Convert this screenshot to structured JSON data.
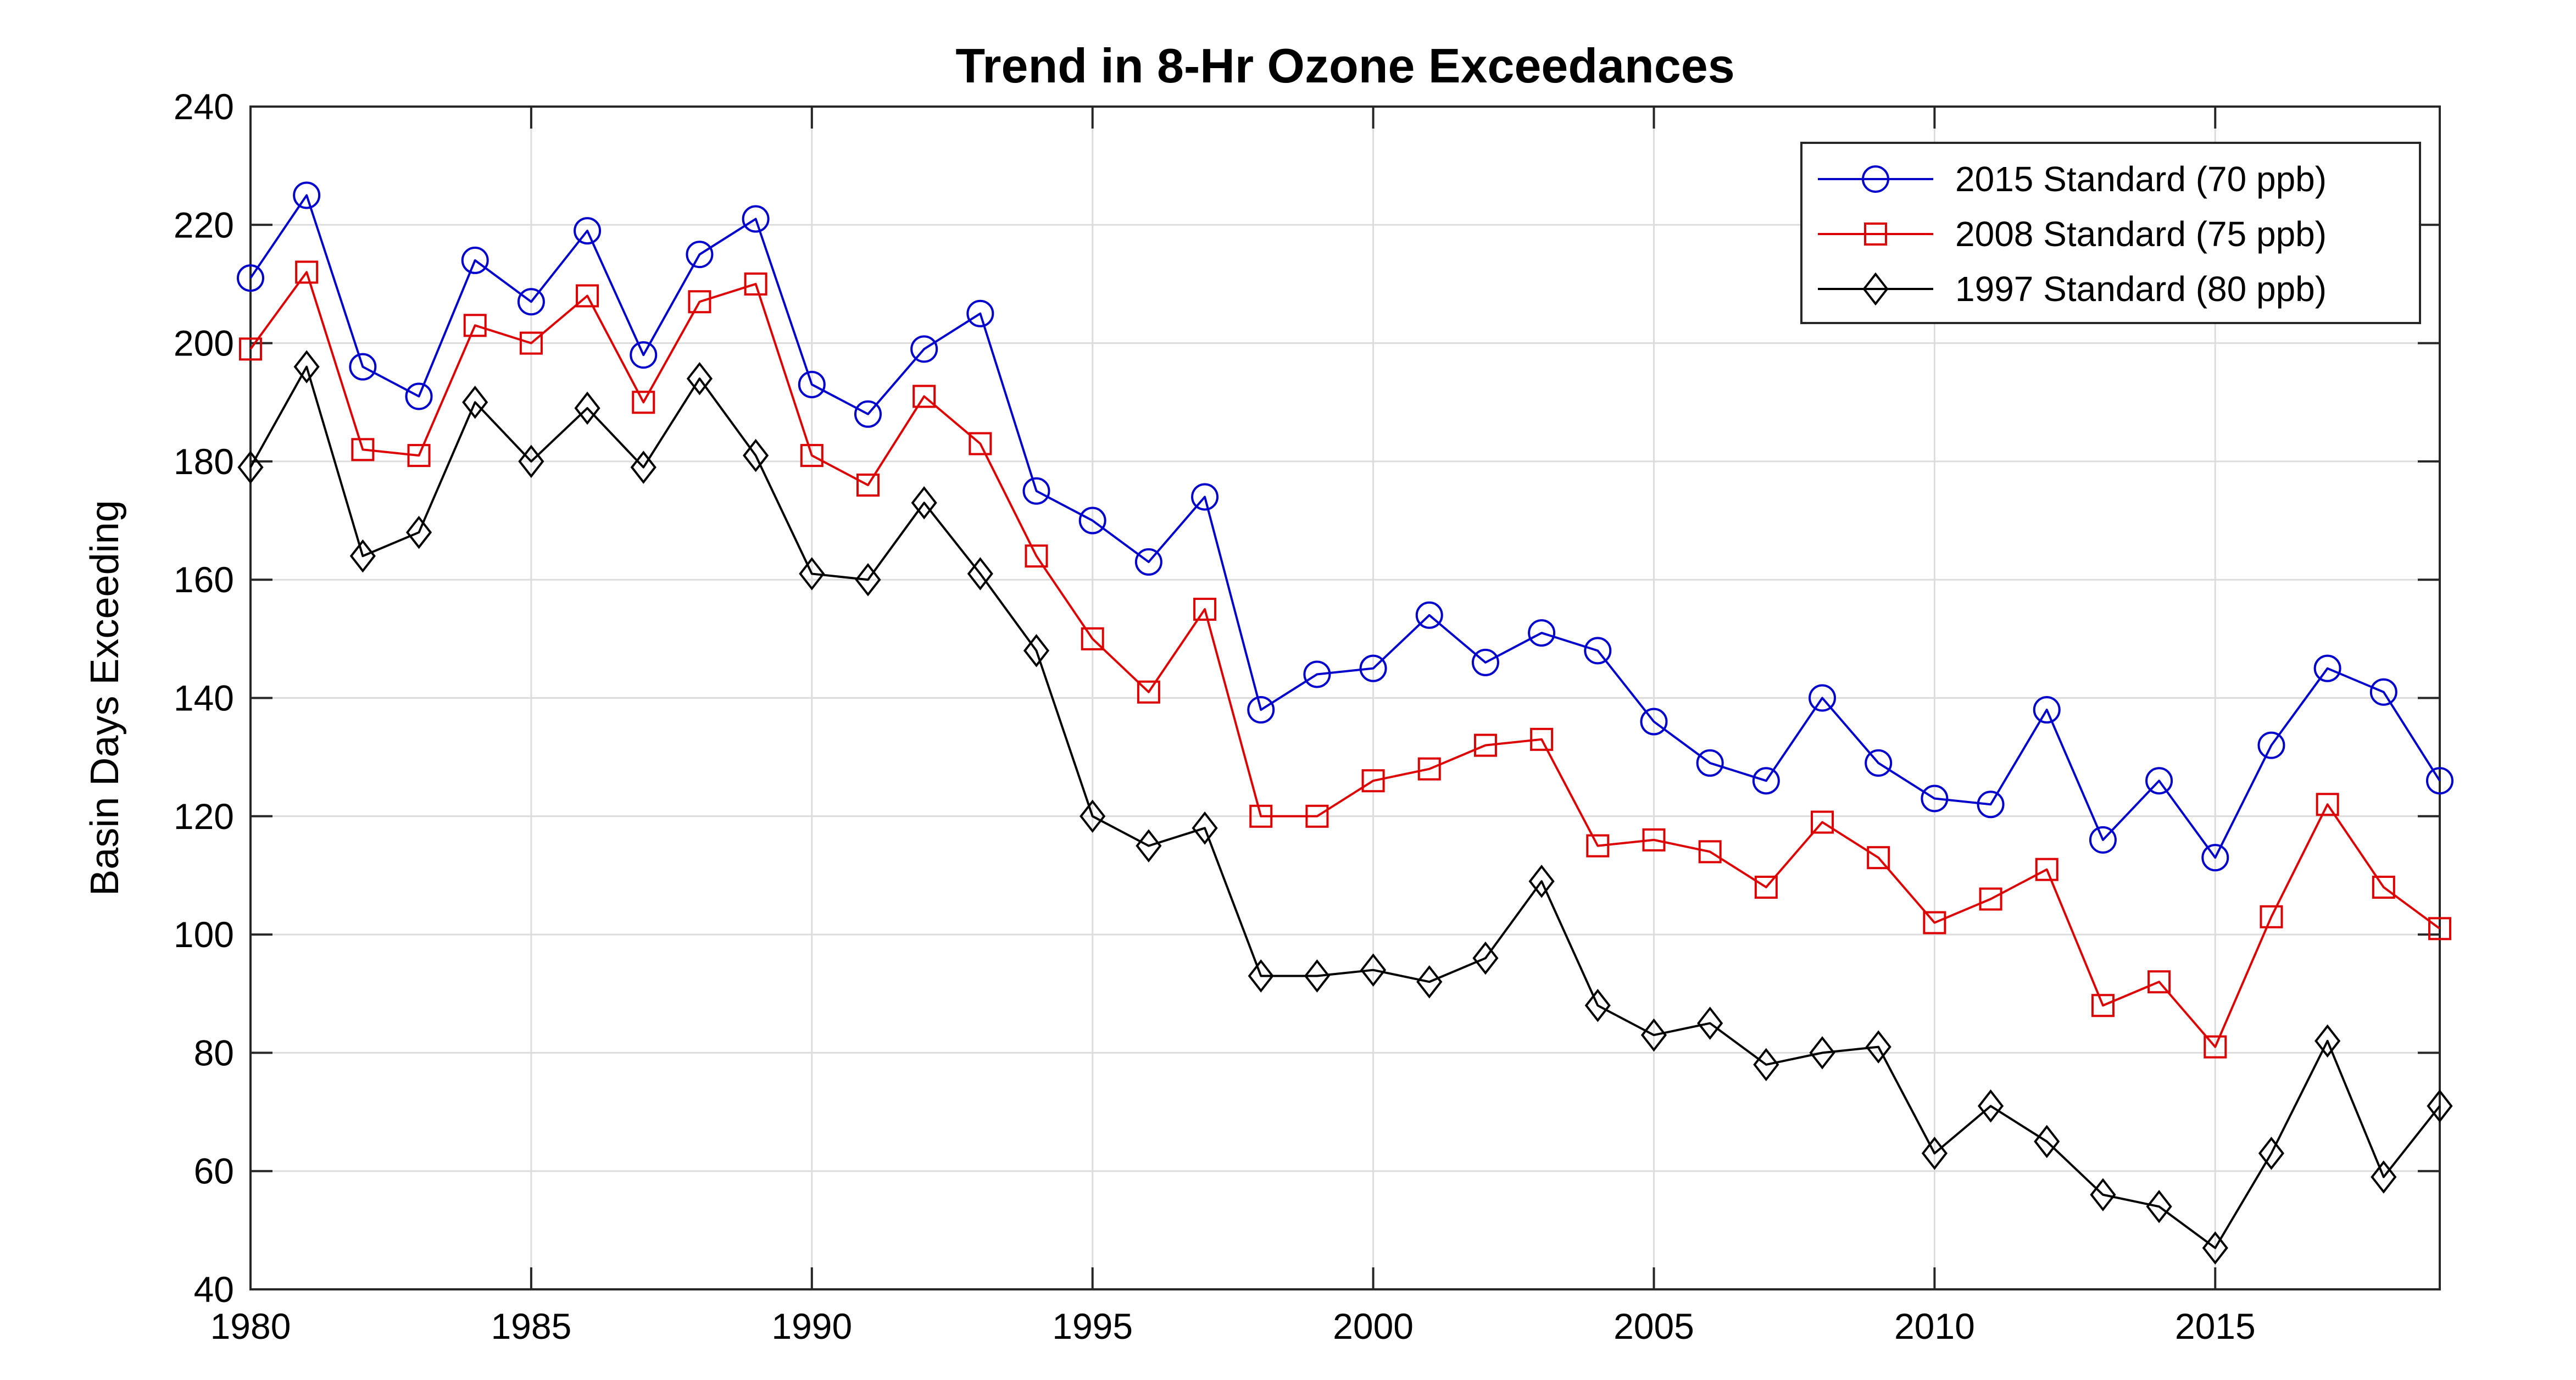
{
  "chart_data": {
    "type": "line",
    "title": "Trend in 8-Hr Ozone Exceedances",
    "xlabel": "",
    "ylabel": "Basin Days Exceeding",
    "xlim": [
      1980,
      2019
    ],
    "ylim": [
      40,
      240
    ],
    "x_ticks": [
      1980,
      1985,
      1990,
      1995,
      2000,
      2005,
      2010,
      2015
    ],
    "y_ticks": [
      40,
      60,
      80,
      100,
      120,
      140,
      160,
      180,
      200,
      220,
      240
    ],
    "grid": true,
    "legend_position": "top-right",
    "x": [
      1980,
      1981,
      1982,
      1983,
      1984,
      1985,
      1986,
      1987,
      1988,
      1989,
      1990,
      1991,
      1992,
      1993,
      1994,
      1995,
      1996,
      1997,
      1998,
      1999,
      2000,
      2001,
      2002,
      2003,
      2004,
      2005,
      2006,
      2007,
      2008,
      2009,
      2010,
      2011,
      2012,
      2013,
      2014,
      2015,
      2016,
      2017,
      2018,
      2019
    ],
    "series": [
      {
        "name": "2015 Standard (70 ppb)",
        "color": "#0000cc",
        "marker": "circle",
        "values": [
          211,
          225,
          196,
          191,
          214,
          207,
          219,
          198,
          215,
          221,
          193,
          188,
          199,
          205,
          175,
          170,
          163,
          174,
          138,
          144,
          145,
          154,
          146,
          151,
          148,
          136,
          129,
          126,
          140,
          129,
          123,
          122,
          138,
          116,
          126,
          113,
          132,
          145,
          141,
          126
        ]
      },
      {
        "name": "2008 Standard (75 ppb)",
        "color": "#dd0000",
        "marker": "square",
        "values": [
          199,
          212,
          182,
          181,
          203,
          200,
          208,
          190,
          207,
          210,
          181,
          176,
          191,
          183,
          164,
          150,
          141,
          155,
          120,
          120,
          126,
          128,
          132,
          133,
          115,
          116,
          114,
          108,
          119,
          113,
          102,
          106,
          111,
          88,
          92,
          81,
          103,
          122,
          108,
          101
        ]
      },
      {
        "name": "1997 Standard (80 ppb)",
        "color": "#000000",
        "marker": "diamond",
        "values": [
          179,
          196,
          164,
          168,
          190,
          180,
          189,
          179,
          194,
          181,
          161,
          160,
          173,
          161,
          148,
          120,
          115,
          118,
          93,
          93,
          94,
          92,
          96,
          109,
          88,
          83,
          85,
          78,
          80,
          81,
          63,
          71,
          65,
          56,
          54,
          47,
          63,
          82,
          59,
          71
        ]
      }
    ]
  }
}
